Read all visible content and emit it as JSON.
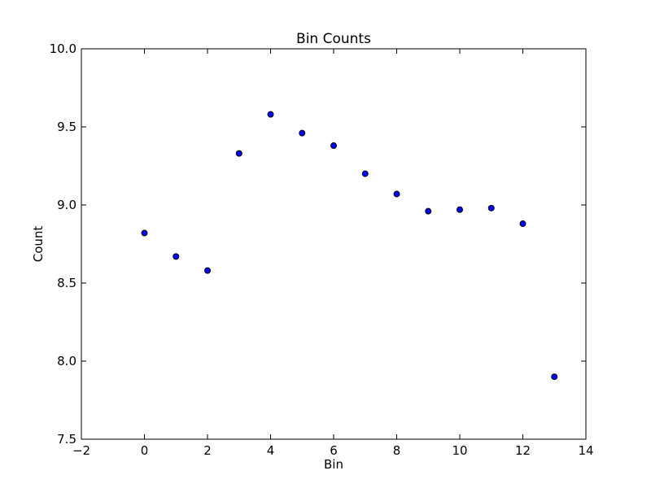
{
  "chart_data": {
    "type": "scatter",
    "title": "Bin Counts",
    "xlabel": "Bin",
    "ylabel": "Count",
    "xlim": [
      -2,
      14
    ],
    "ylim": [
      7.5,
      10.0
    ],
    "xticks": [
      "−2",
      "0",
      "2",
      "4",
      "6",
      "8",
      "10",
      "12",
      "14"
    ],
    "yticks": [
      "7.5",
      "8.0",
      "8.5",
      "9.0",
      "9.5",
      "10.0"
    ],
    "grid": false,
    "marker_color": "#0000ff",
    "series": [
      {
        "x": [
          0,
          1,
          2,
          3,
          4,
          5,
          6,
          7,
          8,
          9,
          10,
          11,
          12,
          13
        ],
        "y": [
          8.82,
          8.67,
          8.58,
          9.33,
          9.58,
          9.46,
          9.38,
          9.2,
          9.07,
          8.96,
          8.97,
          8.98,
          8.88,
          7.9
        ]
      }
    ]
  }
}
